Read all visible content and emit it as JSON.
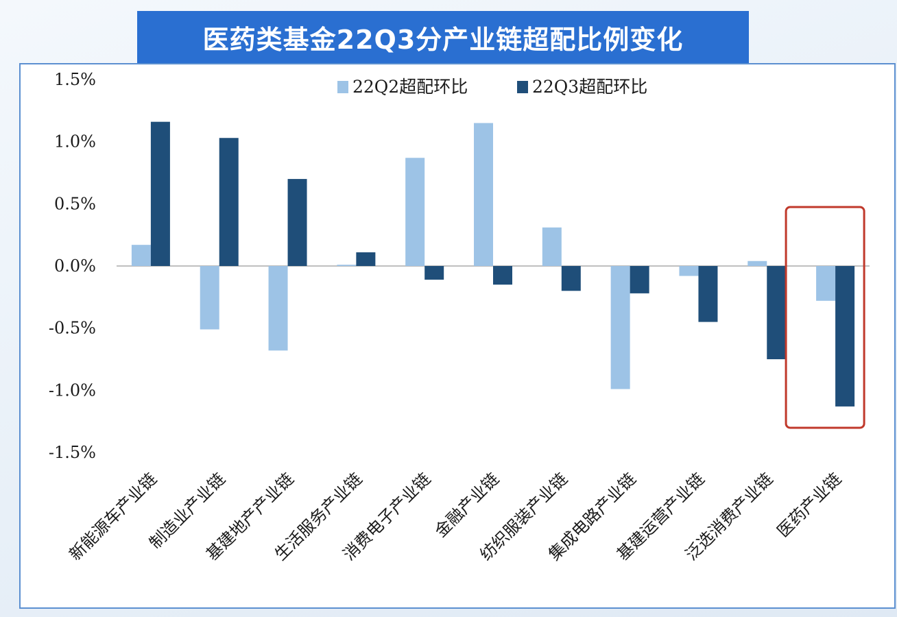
{
  "header": {
    "title": "医药类基金22Q3分产业链超配比例变化"
  },
  "colors": {
    "q2": "#9dc3e6",
    "q3": "#1f4e79",
    "highlight": "#c0392b",
    "title_bg": "#2a6fd1",
    "frame": "#5b8fd0"
  },
  "chart_data": {
    "type": "bar",
    "title": "医药类基金22Q3分产业链超配比例变化",
    "xlabel": "",
    "ylabel": "",
    "ylim": [
      -1.5,
      1.5
    ],
    "yticks": [
      "1.5%",
      "1.0%",
      "0.5%",
      "0.0%",
      "-0.5%",
      "-1.0%",
      "-1.5%"
    ],
    "ytick_values": [
      1.5,
      1.0,
      0.5,
      0.0,
      -0.5,
      -1.0,
      -1.5
    ],
    "categories": [
      "新能源车产业链",
      "制造业产业链",
      "基建地产产业链",
      "生活服务产业链",
      "消费电子产业链",
      "金融产业链",
      "纺织服装产业链",
      "集成电路产业链",
      "基建运营产业链",
      "泛选消费产业链",
      "医药产业链"
    ],
    "series": [
      {
        "name": "22Q2超配环比",
        "values": [
          0.17,
          -0.51,
          -0.68,
          0.01,
          0.87,
          1.15,
          0.31,
          -0.99,
          -0.08,
          0.04,
          -0.28
        ]
      },
      {
        "name": "22Q3超配环比",
        "values": [
          1.16,
          1.03,
          0.7,
          0.11,
          -0.11,
          -0.15,
          -0.2,
          -0.22,
          -0.45,
          -0.75,
          -1.13
        ]
      }
    ],
    "legend": "top-right",
    "grid": false,
    "highlight_category": "医药产业链"
  }
}
